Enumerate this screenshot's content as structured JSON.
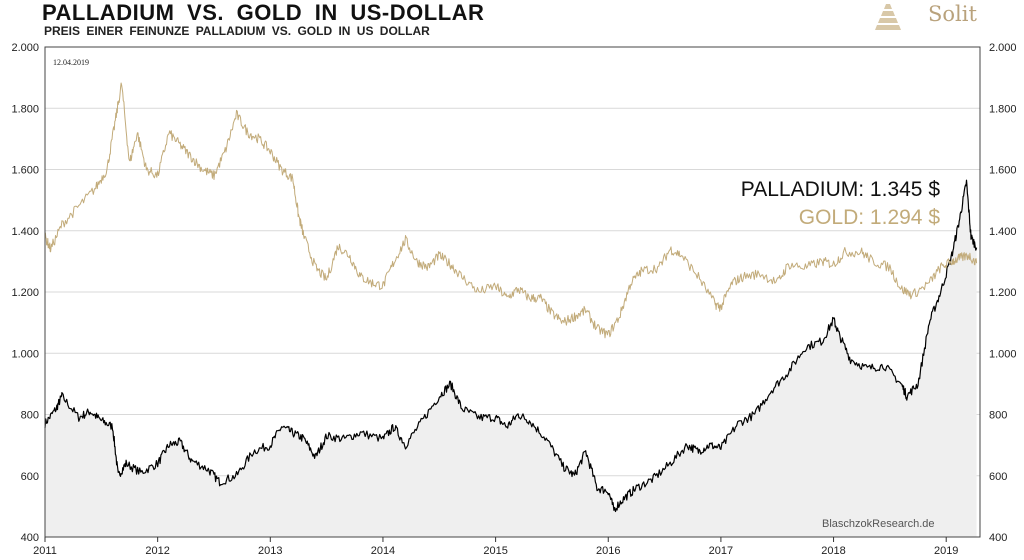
{
  "header": {
    "title": "PALLADIUM  VS.  GOLD  IN  US-DOLLAR",
    "subtitle": "PREIS  EINER  FEINUNZE  PALLADIUM  VS. GOLD  IN  US DOLLAR"
  },
  "logo": {
    "text": "Solit"
  },
  "date_label": "12.04.2019",
  "credit": "BlaschzokResearch.de",
  "labels": {
    "palladium": "PALLADIUM: 1.345 $",
    "gold": "GOLD: 1.294 $"
  },
  "colors": {
    "palladium": "#000000",
    "gold": "#c2ab7a",
    "area": "#efefef",
    "grid": "#d9d9d9"
  },
  "chart_data": {
    "type": "line",
    "title": "PALLADIUM  VS.  GOLD  IN  US-DOLLAR",
    "xlabel": "",
    "ylabel": "",
    "xlim": [
      2011.0,
      2019.3
    ],
    "ylim": [
      400,
      2000
    ],
    "x_ticks": [
      "2011",
      "2012",
      "2013",
      "2014",
      "2015",
      "2016",
      "2017",
      "2018",
      "2019"
    ],
    "y_ticks_left": [
      "2.000",
      "1.800",
      "1.600",
      "1.400",
      "1.200",
      "1.000",
      "800",
      "600",
      "400"
    ],
    "y_ticks_right": [
      "2.000",
      "1.800",
      "1.600",
      "1.400",
      "1.200",
      "1.000",
      "800",
      "600",
      "400"
    ],
    "grid": "horizontal",
    "series": [
      {
        "name": "PALLADIUM",
        "color": "#000000",
        "fill": true,
        "x": [
          2011.0,
          2011.1,
          2011.15,
          2011.3,
          2011.4,
          2011.5,
          2011.6,
          2011.65,
          2011.72,
          2011.85,
          2012.0,
          2012.1,
          2012.2,
          2012.3,
          2012.45,
          2012.55,
          2012.7,
          2012.85,
          2013.0,
          2013.1,
          2013.2,
          2013.3,
          2013.4,
          2013.5,
          2013.65,
          2013.8,
          2014.0,
          2014.1,
          2014.2,
          2014.35,
          2014.5,
          2014.6,
          2014.7,
          2014.85,
          2015.0,
          2015.1,
          2015.2,
          2015.3,
          2015.45,
          2015.6,
          2015.7,
          2015.8,
          2015.9,
          2016.0,
          2016.05,
          2016.15,
          2016.25,
          2016.4,
          2016.55,
          2016.7,
          2016.8,
          2016.9,
          2017.0,
          2017.15,
          2017.3,
          2017.45,
          2017.6,
          2017.75,
          2017.9,
          2018.0,
          2018.05,
          2018.15,
          2018.3,
          2018.45,
          2018.6,
          2018.65,
          2018.75,
          2018.85,
          2018.95,
          2019.05,
          2019.12,
          2019.18,
          2019.22,
          2019.27
        ],
        "y": [
          770,
          820,
          860,
          790,
          810,
          780,
          760,
          600,
          640,
          610,
          640,
          700,
          710,
          650,
          620,
          580,
          600,
          680,
          700,
          760,
          740,
          720,
          660,
          730,
          720,
          740,
          720,
          760,
          700,
          780,
          860,
          900,
          820,
          790,
          790,
          760,
          800,
          780,
          720,
          630,
          600,
          680,
          560,
          550,
          490,
          530,
          560,
          590,
          640,
          700,
          680,
          700,
          690,
          770,
          800,
          880,
          940,
          1020,
          1040,
          1110,
          1060,
          980,
          950,
          960,
          900,
          860,
          900,
          1100,
          1200,
          1320,
          1440,
          1560,
          1380,
          1345
        ]
      },
      {
        "name": "GOLD",
        "color": "#c2ab7a",
        "fill": false,
        "x": [
          2011.0,
          2011.05,
          2011.15,
          2011.3,
          2011.45,
          2011.55,
          2011.62,
          2011.68,
          2011.75,
          2011.82,
          2011.9,
          2012.0,
          2012.1,
          2012.2,
          2012.3,
          2012.4,
          2012.5,
          2012.6,
          2012.7,
          2012.8,
          2012.9,
          2013.0,
          2013.1,
          2013.2,
          2013.25,
          2013.3,
          2013.4,
          2013.5,
          2013.6,
          2013.7,
          2013.8,
          2013.9,
          2014.0,
          2014.1,
          2014.2,
          2014.3,
          2014.4,
          2014.5,
          2014.6,
          2014.7,
          2014.85,
          2015.0,
          2015.1,
          2015.2,
          2015.3,
          2015.4,
          2015.5,
          2015.6,
          2015.7,
          2015.8,
          2015.9,
          2016.0,
          2016.1,
          2016.2,
          2016.3,
          2016.45,
          2016.55,
          2016.65,
          2016.8,
          2016.95,
          2017.0,
          2017.1,
          2017.2,
          2017.35,
          2017.5,
          2017.6,
          2017.75,
          2017.9,
          2018.0,
          2018.1,
          2018.25,
          2018.35,
          2018.5,
          2018.6,
          2018.7,
          2018.85,
          2018.95,
          2019.05,
          2019.12,
          2019.2,
          2019.27
        ],
        "y": [
          1380,
          1340,
          1420,
          1480,
          1540,
          1600,
          1750,
          1880,
          1620,
          1720,
          1600,
          1580,
          1720,
          1680,
          1640,
          1600,
          1580,
          1660,
          1780,
          1720,
          1700,
          1660,
          1600,
          1570,
          1450,
          1380,
          1280,
          1240,
          1350,
          1320,
          1250,
          1230,
          1220,
          1300,
          1370,
          1300,
          1280,
          1320,
          1290,
          1250,
          1200,
          1220,
          1180,
          1210,
          1180,
          1180,
          1130,
          1100,
          1120,
          1140,
          1080,
          1060,
          1120,
          1230,
          1270,
          1280,
          1340,
          1320,
          1250,
          1160,
          1150,
          1230,
          1250,
          1260,
          1230,
          1290,
          1280,
          1300,
          1290,
          1330,
          1330,
          1300,
          1280,
          1210,
          1190,
          1230,
          1280,
          1300,
          1310,
          1320,
          1294
        ]
      }
    ]
  }
}
